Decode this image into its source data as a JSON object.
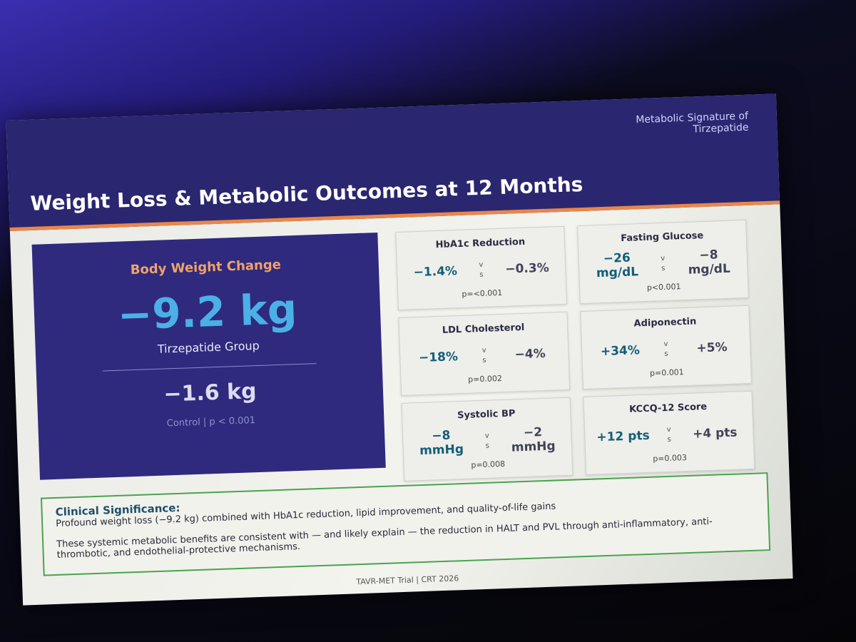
{
  "header": {
    "title": "Weight Loss & Metabolic Outcomes at 12 Months",
    "tag": "Metabolic Signature of Tirzepatide"
  },
  "hero": {
    "label": "Body Weight Change",
    "value": "−9.2 kg",
    "group": "Tirzepatide Group",
    "control_value": "−1.6 kg",
    "control_note": "Control | p < 0.001"
  },
  "cards": [
    {
      "title": "HbA1c Reduction",
      "treatment": "−1.4%",
      "vs": "vs",
      "control": "−0.3%",
      "p": "p=<0.001"
    },
    {
      "title": "Fasting Glucose",
      "treatment": "−26 mg/dL",
      "vs": "vs",
      "control": "−8 mg/dL",
      "p": "p<0.001"
    },
    {
      "title": "LDL Cholesterol",
      "treatment": "−18%",
      "vs": "vs",
      "control": "−4%",
      "p": "p=0.002"
    },
    {
      "title": "Adiponectin",
      "treatment": "+34%",
      "vs": "vs",
      "control": "+5%",
      "p": "p=0.001"
    },
    {
      "title": "Systolic BP",
      "treatment": "−8 mmHg",
      "vs": "vs",
      "control": "−2 mmHg",
      "p": "p=0.008"
    },
    {
      "title": "KCCQ-12 Score",
      "treatment": "+12 pts",
      "vs": "vs",
      "control": "+4 pts",
      "p": "p=0.003"
    }
  ],
  "significance": {
    "heading": "Clinical Significance:",
    "lines": [
      "Profound weight loss (−9.2 kg) combined with HbA1c reduction, lipid improvement, and quality-of-life gains",
      "These systemic metabolic benefits are consistent with — and likely explain — the reduction in HALT and PVL through anti-inflammatory, anti-thrombotic, and endothelial-protective mechanisms."
    ]
  },
  "footer": "TAVR-MET Trial | CRT 2026"
}
